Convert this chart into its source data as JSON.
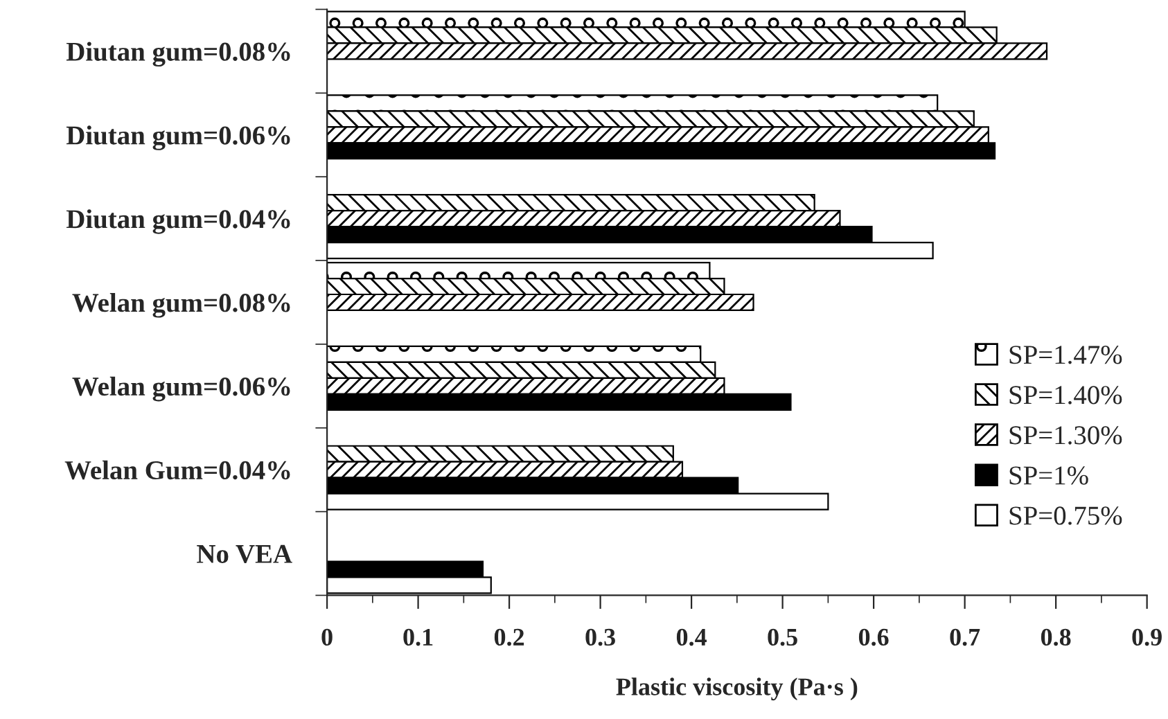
{
  "chart_data": {
    "type": "bar",
    "orientation": "horizontal",
    "categories": [
      "Diutan gum=0.08%",
      "Diutan gum=0.06%",
      "Diutan gum=0.04%",
      "Welan gum=0.08%",
      "Welan gum=0.06%",
      "Welan Gum=0.04%",
      "No VEA"
    ],
    "series": [
      {
        "name": "SP=1.47%",
        "color": "#000000",
        "values": [
          0.7,
          0.67,
          null,
          0.42,
          0.41,
          null,
          null
        ]
      },
      {
        "name": "SP=1.40%",
        "color": "#000000",
        "values": [
          0.735,
          0.71,
          0.535,
          0.436,
          0.426,
          0.38,
          null
        ]
      },
      {
        "name": "SP=1.30%",
        "color": "#000000",
        "values": [
          0.79,
          0.726,
          0.563,
          0.468,
          0.436,
          0.39,
          null
        ]
      },
      {
        "name": "SP=1%",
        "color": "#000000",
        "values": [
          null,
          0.733,
          0.598,
          null,
          0.509,
          0.451,
          0.171
        ]
      },
      {
        "name": "SP=0.75%",
        "color": "#ffffff",
        "values": [
          null,
          null,
          0.665,
          null,
          null,
          0.55,
          0.18
        ]
      }
    ],
    "xlabel": "Plastic viscosity (Pa·s )",
    "xlim": [
      0,
      0.9
    ],
    "xticks": [
      0,
      0.1,
      0.2,
      0.3,
      0.4,
      0.5,
      0.6,
      0.7,
      0.8,
      0.9
    ],
    "legend": "right",
    "grid": false
  }
}
